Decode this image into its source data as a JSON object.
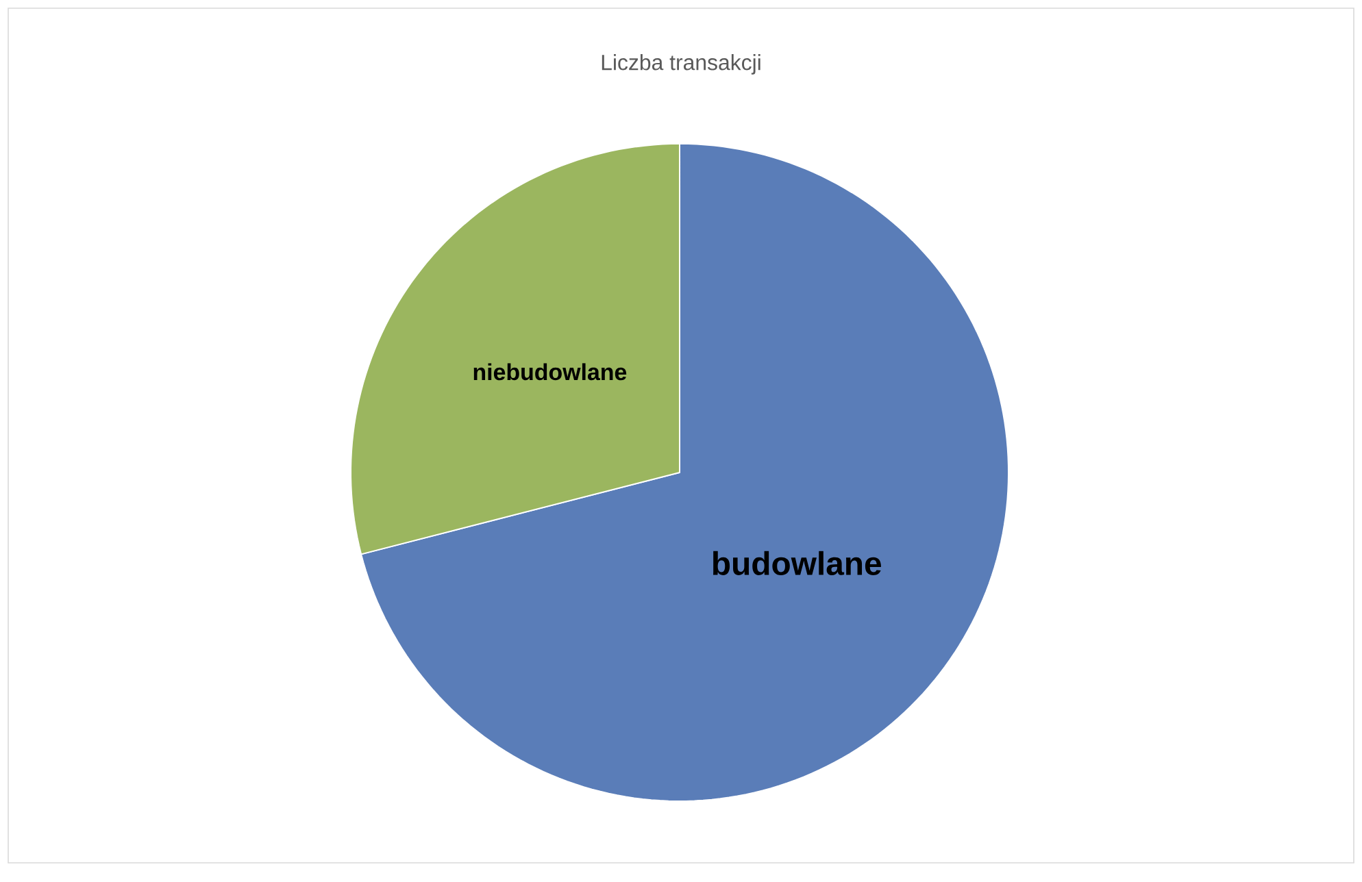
{
  "chart_data": {
    "type": "pie",
    "title": "Liczba transakcji",
    "categories": [
      "budowlane",
      "niebudowlane"
    ],
    "values": [
      71,
      29
    ],
    "colors": [
      "#5a7db8",
      "#9bb65f"
    ]
  }
}
